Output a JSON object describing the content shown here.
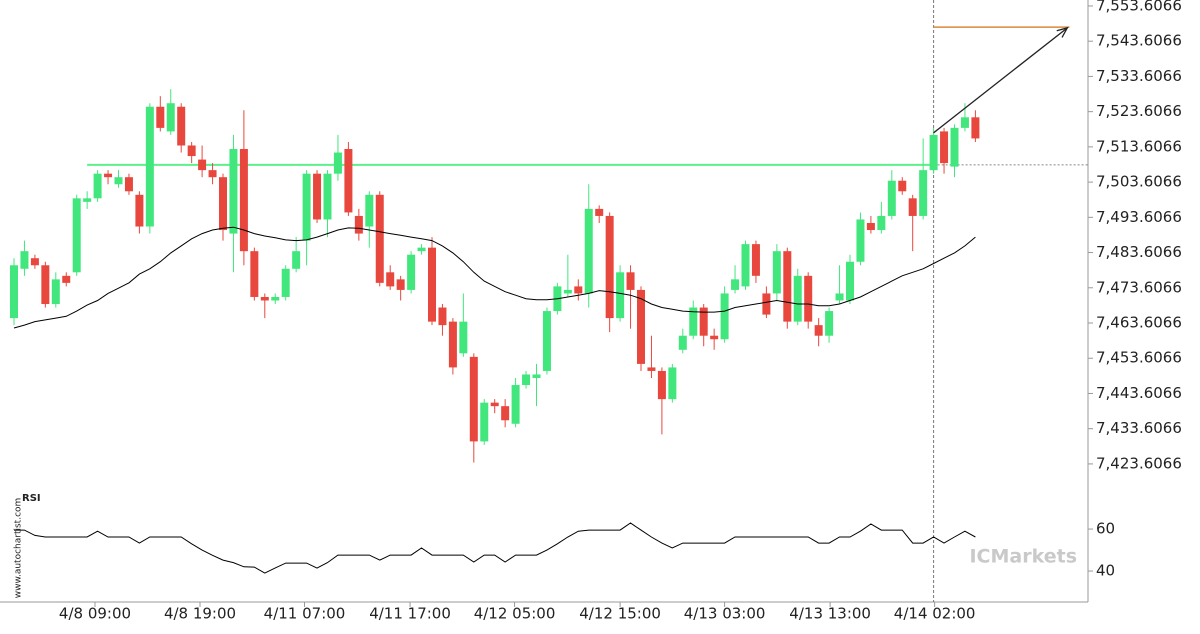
{
  "chart_data": {
    "type": "candlestick",
    "watermark": "www.autochartist.com",
    "logo": "ICMarkets",
    "rsi_title": "RSI",
    "colors": {
      "up": "#41e77d",
      "down": "#e8473e",
      "ma": "#000000",
      "rsi": "#000000",
      "level": "#5ef08a",
      "target": "#d98a3a",
      "arrow": "#222222"
    },
    "ylim": [
      7414.5,
      7555.3
    ],
    "yticks": [
      {
        "value": 7423.6066,
        "label": "7,423.6066"
      },
      {
        "value": 7433.6066,
        "label": "7,433.6066"
      },
      {
        "value": 7443.6066,
        "label": "7,443.6066"
      },
      {
        "value": 7453.6066,
        "label": "7,453.6066"
      },
      {
        "value": 7463.6066,
        "label": "7,463.6066"
      },
      {
        "value": 7473.6066,
        "label": "7,473.6066"
      },
      {
        "value": 7483.6066,
        "label": "7,483.6066"
      },
      {
        "value": 7493.6066,
        "label": "7,493.6066"
      },
      {
        "value": 7503.6066,
        "label": "7,503.6066"
      },
      {
        "value": 7513.6066,
        "label": "7,513.6066"
      },
      {
        "value": 7523.6066,
        "label": "7,523.6066"
      },
      {
        "value": 7533.6066,
        "label": "7,533.6066"
      },
      {
        "value": 7543.6066,
        "label": "7,543.6066"
      },
      {
        "value": 7553.6066,
        "label": "7,553.6066"
      }
    ],
    "xticks": [
      {
        "value": 7.75,
        "label": "4/8 09:00"
      },
      {
        "value": 17.8,
        "label": "4/8 19:00"
      },
      {
        "value": 27.8,
        "label": "4/11 07:00"
      },
      {
        "value": 37.9,
        "label": "4/11 17:00"
      },
      {
        "value": 47.9,
        "label": "4/12 05:00"
      },
      {
        "value": 58,
        "label": "4/12 15:00"
      },
      {
        "value": 68,
        "label": "4/13 03:00"
      },
      {
        "value": 78.1,
        "label": "4/13 13:00"
      },
      {
        "value": 88.1,
        "label": "4/14 02:00"
      }
    ],
    "open": [
      7465,
      7479,
      7482,
      7480,
      7469,
      7477,
      7478,
      7498,
      7499,
      7506,
      7503,
      7505,
      7500,
      7491,
      7525,
      7518,
      7525,
      7514,
      7510,
      7507,
      7505,
      7489,
      7513,
      7484,
      7471,
      7470,
      7471,
      7479,
      7487,
      7506,
      7493,
      7506,
      7513,
      7494,
      7491,
      7500,
      7478,
      7476,
      7473,
      7484,
      7485,
      7468,
      7464,
      7455,
      7454,
      7430,
      7441,
      7440,
      7435,
      7446,
      7448,
      7450,
      7467,
      7472,
      7474,
      7472,
      7496,
      7494,
      7465,
      7478,
      7473,
      7451,
      7450,
      7442,
      7456,
      7460,
      7468,
      7460,
      7459,
      7473,
      7474,
      7486,
      7472,
      7472,
      7484,
      7464,
      7477,
      7463,
      7460,
      7470,
      7470,
      7481,
      7492,
      7490,
      7494,
      7504,
      7499,
      7494,
      7507,
      7518,
      7508,
      7519,
      7522
    ],
    "high": [
      7482,
      7487,
      7483,
      7481,
      7478,
      7478,
      7500,
      7501,
      7507,
      7507,
      7507,
      7506,
      7501,
      7526,
      7528,
      7530,
      7526,
      7515,
      7514,
      7509,
      7506,
      7517,
      7524,
      7485,
      7472,
      7472,
      7480,
      7488,
      7507,
      7507,
      7507,
      7517,
      7515,
      7496,
      7501,
      7501,
      7480,
      7477,
      7484,
      7486,
      7488,
      7469,
      7465,
      7472,
      7455,
      7442,
      7442,
      7442,
      7448,
      7450,
      7452,
      7468,
      7475,
      7483,
      7476,
      7503,
      7497,
      7495,
      7480,
      7480,
      7474,
      7460,
      7451,
      7452,
      7462,
      7470,
      7469,
      7462,
      7474,
      7480,
      7487,
      7487,
      7474,
      7486,
      7485,
      7479,
      7478,
      7465,
      7468,
      7480,
      7483,
      7495,
      7494,
      7498,
      7507,
      7505,
      7500,
      7516,
      7519,
      7519,
      7520,
      7526,
      7524
    ],
    "low": [
      7463,
      7477,
      7479,
      7468,
      7468,
      7474,
      7477,
      7496,
      7498,
      7503,
      7502,
      7500,
      7489,
      7489,
      7518,
      7517,
      7512,
      7509,
      7505,
      7503,
      7487,
      7478,
      7480,
      7470,
      7465,
      7469,
      7470,
      7478,
      7480,
      7492,
      7488,
      7504,
      7494,
      7487,
      7485,
      7474,
      7473,
      7470,
      7472,
      7483,
      7463,
      7460,
      7449,
      7454,
      7424,
      7429,
      7438,
      7434,
      7434,
      7445,
      7440,
      7449,
      7466,
      7471,
      7470,
      7468,
      7492,
      7461,
      7464,
      7462,
      7450,
      7448,
      7432,
      7441,
      7455,
      7459,
      7457,
      7456,
      7458,
      7472,
      7473,
      7475,
      7465,
      7470,
      7462,
      7463,
      7462,
      7457,
      7458,
      7469,
      7469,
      7480,
      7489,
      7489,
      7493,
      7500,
      7484,
      7493,
      7506,
      7506,
      7505,
      7518,
      7515
    ],
    "close": [
      7480,
      7484,
      7480,
      7469,
      7476,
      7475,
      7499,
      7499,
      7506,
      7505,
      7505,
      7501,
      7491,
      7525,
      7519,
      7526,
      7514,
      7511,
      7507,
      7505,
      7490,
      7513,
      7484,
      7471,
      7470,
      7471,
      7479,
      7484,
      7506,
      7493,
      7506,
      7512,
      7495,
      7489,
      7500,
      7475,
      7474,
      7473,
      7483,
      7485,
      7464,
      7463,
      7451,
      7464,
      7430,
      7441,
      7440,
      7436,
      7446,
      7449,
      7449,
      7467,
      7474,
      7473,
      7472,
      7496,
      7494,
      7465,
      7478,
      7473,
      7452,
      7450,
      7442,
      7451,
      7460,
      7468,
      7460,
      7459,
      7472,
      7476,
      7486,
      7477,
      7466,
      7484,
      7464,
      7477,
      7464,
      7460,
      7467,
      7472,
      7481,
      7493,
      7490,
      7494,
      7504,
      7501,
      7494,
      7507,
      7517,
      7509,
      7519,
      7522,
      7516
    ],
    "ma": {
      "values": [
        7462.2,
        7463,
        7464,
        7464.5,
        7465,
        7465.5,
        7467,
        7468.7,
        7470,
        7472,
        7473.5,
        7475,
        7477.5,
        7479,
        7481,
        7483.5,
        7485.5,
        7487.5,
        7489,
        7490,
        7490.5,
        7490.8,
        7490,
        7489,
        7488.3,
        7487.8,
        7487.2,
        7487,
        7487.2,
        7488,
        7489,
        7490,
        7490.6,
        7490.5,
        7490,
        7489.5,
        7489,
        7488.5,
        7488,
        7487.5,
        7487,
        7485.5,
        7483.5,
        7481,
        7478,
        7475.5,
        7474,
        7472.5,
        7471.5,
        7470.5,
        7470.2,
        7470.2,
        7470.5,
        7471,
        7471.5,
        7472,
        7472.8,
        7472.5,
        7472,
        7471.5,
        7470.5,
        7469,
        7468,
        7467.5,
        7467,
        7466.8,
        7466.7,
        7466.7,
        7467,
        7468,
        7468.5,
        7469,
        7469.5,
        7470,
        7469.5,
        7469,
        7469,
        7468.5,
        7468.5,
        7469,
        7470,
        7471,
        7472.5,
        7474,
        7475.5,
        7477,
        7478,
        7479,
        7480.5,
        7482,
        7483.5,
        7485.5,
        7488
      ]
    },
    "rsi": {
      "ylim": [
        26.2,
        81
      ],
      "yticks": [
        40,
        60
      ],
      "values": [
        59.5,
        59.5,
        57,
        56.2,
        56.2,
        56.2,
        56.2,
        56.2,
        59,
        56.2,
        56.2,
        56.2,
        53.3,
        56.2,
        56.2,
        56.2,
        56.2,
        53,
        50,
        47.5,
        45.2,
        44,
        42,
        41.9,
        39,
        41.5,
        43.8,
        43.8,
        43.8,
        41.4,
        44,
        47.6,
        47.6,
        47.6,
        47.6,
        45.2,
        47.6,
        47.6,
        47.6,
        51,
        47.6,
        47.6,
        47.6,
        47.6,
        44.3,
        47.6,
        47.6,
        44.3,
        47.6,
        47.6,
        47.6,
        50,
        53,
        56.2,
        59,
        59.5,
        59.5,
        59.5,
        59.5,
        62.9,
        59.5,
        56.2,
        53.3,
        51,
        53.3,
        53.3,
        53.3,
        53.3,
        53.3,
        56.2,
        56.2,
        56.2,
        56.2,
        56.2,
        56.2,
        56.2,
        56.2,
        53.3,
        53.3,
        56.2,
        56.2,
        59,
        62.4,
        59.5,
        59.5,
        59.5,
        53.3,
        53.3,
        56.2,
        53.3,
        56.2,
        59,
        56.2
      ]
    },
    "breakout": {
      "level": 7508.5,
      "start": 7,
      "end": 88
    },
    "target": {
      "level": 7547.6,
      "start": 88,
      "end": 101
    },
    "arrow": {
      "x": [
        88,
        100.8
      ],
      "y": [
        7517.6,
        7547.4
      ]
    }
  }
}
